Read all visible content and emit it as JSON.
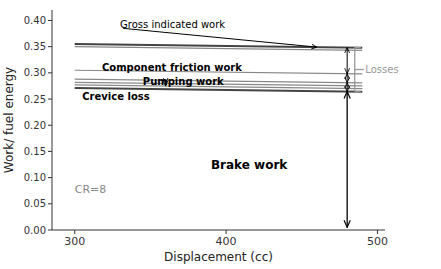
{
  "chart_data": {
    "type": "line",
    "x": [
      300,
      490
    ],
    "series": [
      {
        "color": "#444444",
        "values": [
          0.355,
          0.348
        ]
      },
      {
        "color": "#888888",
        "values": [
          0.35,
          0.343
        ]
      },
      {
        "color": "#888888",
        "values": [
          0.305,
          0.298
        ]
      },
      {
        "color": "#888888",
        "values": [
          0.288,
          0.281
        ]
      },
      {
        "color": "#888888",
        "values": [
          0.282,
          0.275
        ]
      },
      {
        "color": "#888888",
        "values": [
          0.277,
          0.27
        ]
      },
      {
        "color": "#444444",
        "values": [
          0.271,
          0.264
        ]
      }
    ],
    "xlim": [
      285,
      505
    ],
    "ylim": [
      0,
      0.42
    ],
    "xticks": [
      300,
      400,
      500
    ],
    "yticks": [
      {
        "value": 0,
        "label": "0.00"
      },
      0.05,
      {
        "value": 0.1,
        "label": "0.10"
      },
      0.15,
      {
        "value": 0.2,
        "label": "0.20"
      },
      0.25,
      {
        "value": 0.3,
        "label": "0.30"
      },
      0.35,
      {
        "value": 0.4,
        "label": "0.40"
      }
    ],
    "xlabel": "Displacement (cc)",
    "ylabel": "Work/ fuel energy",
    "annotations": [
      {
        "text": "CR=8",
        "x": 300,
        "y": 0.065
      },
      {
        "text": "Gross indicated work",
        "x": 330,
        "y": 0.393
      },
      {
        "text": "Component friction work",
        "x": 318,
        "y": 0.31
      },
      {
        "text": "Pumping work",
        "x": 345,
        "y": 0.284
      },
      {
        "text": "Crevice loss",
        "x": 305,
        "y": 0.254
      },
      {
        "text": "Brake work",
        "x": 390,
        "y": 0.125
      },
      {
        "text": "Losses"
      }
    ],
    "grid": false
  }
}
